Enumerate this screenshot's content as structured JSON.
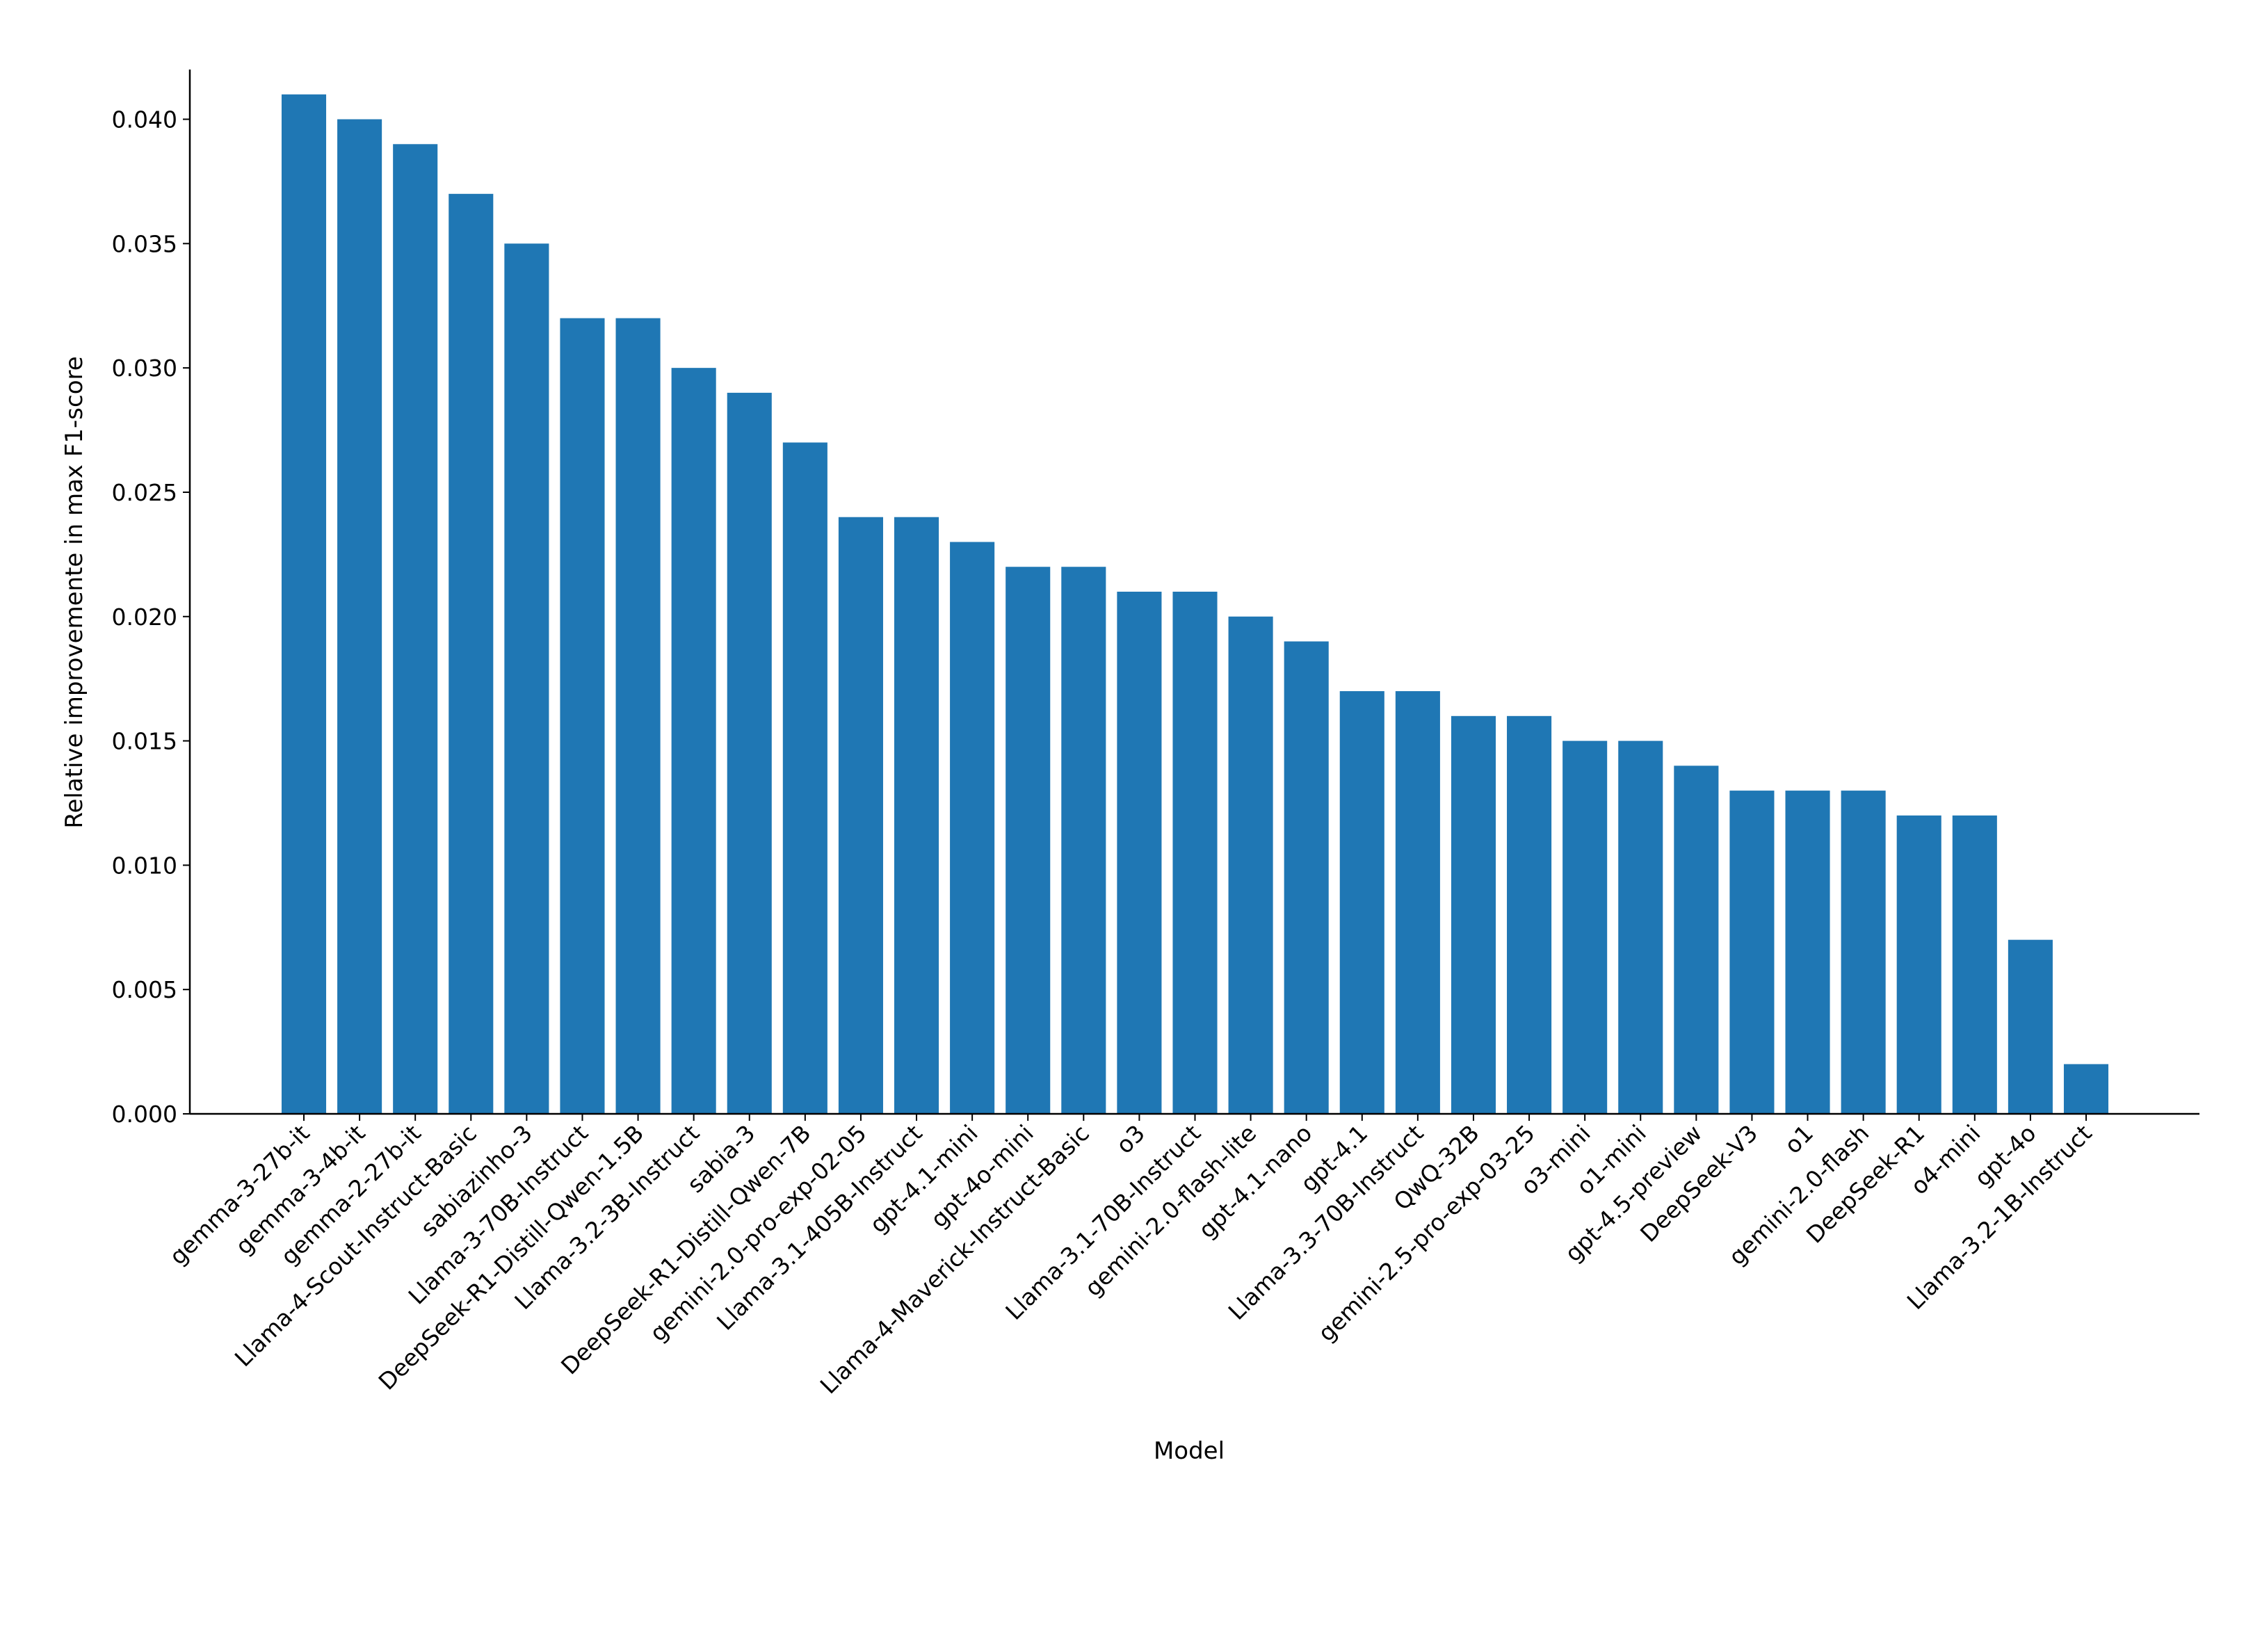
{
  "chart_data": {
    "type": "bar",
    "title": "",
    "xlabel": "Model",
    "ylabel": "Relative improvemente in max F1-score",
    "ylim": [
      0,
      0.042
    ],
    "yticks": [
      "0.000",
      "0.005",
      "0.010",
      "0.015",
      "0.020",
      "0.025",
      "0.030",
      "0.035",
      "0.040"
    ],
    "grid": false,
    "bar_color": "#1f77b4",
    "categories": [
      "gemma-3-27b-it",
      "gemma-3-4b-it",
      "gemma-2-27b-it",
      "Llama-4-Scout-Instruct-Basic",
      "sabiazinho-3",
      "Llama-3-70B-Instruct",
      "DeepSeek-R1-Distill-Qwen-1.5B",
      "Llama-3.2-3B-Instruct",
      "sabia-3",
      "DeepSeek-R1-Distill-Qwen-7B",
      "gemini-2.0-pro-exp-02-05",
      "Llama-3.1-405B-Instruct",
      "gpt-4.1-mini",
      "gpt-4o-mini",
      "Llama-4-Maverick-Instruct-Basic",
      "o3",
      "Llama-3.1-70B-Instruct",
      "gemini-2.0-flash-lite",
      "gpt-4.1-nano",
      "gpt-4.1",
      "Llama-3.3-70B-Instruct",
      "QwQ-32B",
      "gemini-2.5-pro-exp-03-25",
      "o3-mini",
      "o1-mini",
      "gpt-4.5-preview",
      "DeepSeek-V3",
      "o1",
      "gemini-2.0-flash",
      "DeepSeek-R1",
      "o4-mini",
      "gpt-4o",
      "Llama-3.2-1B-Instruct"
    ],
    "values": [
      0.041,
      0.04,
      0.039,
      0.037,
      0.035,
      0.032,
      0.032,
      0.03,
      0.029,
      0.027,
      0.024,
      0.024,
      0.023,
      0.022,
      0.022,
      0.021,
      0.021,
      0.02,
      0.019,
      0.017,
      0.017,
      0.016,
      0.016,
      0.015,
      0.015,
      0.014,
      0.013,
      0.013,
      0.013,
      0.012,
      0.012,
      0.007,
      0.002
    ]
  }
}
